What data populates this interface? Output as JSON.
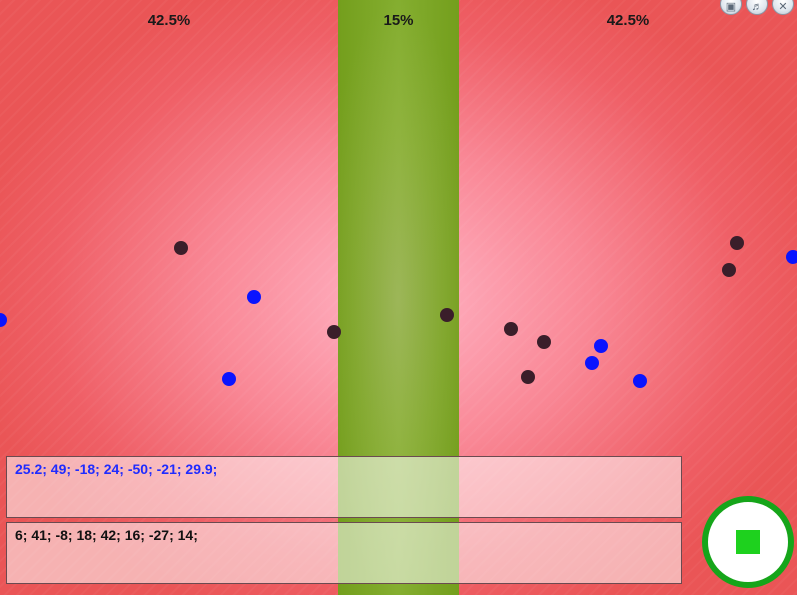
{
  "zones": {
    "left_label": "42.5%",
    "middle_label": "15%",
    "right_label": "42.5%"
  },
  "panels": {
    "blue_values": "25.2; 49; -18; 24; -50; -21; 29.9;",
    "dark_values": "6; 41; -8; 18; 42; 16; -27; 14;"
  },
  "controls": {
    "stop_button_color": "#16a51a",
    "stop_square_color": "#1ed11e",
    "top_icons": [
      "save-icon",
      "sound-icon",
      "close-icon"
    ]
  },
  "colors": {
    "dark_dot": "#3a1e2a",
    "blue_dot": "#0a14ff",
    "band": "#86ad2e"
  }
}
